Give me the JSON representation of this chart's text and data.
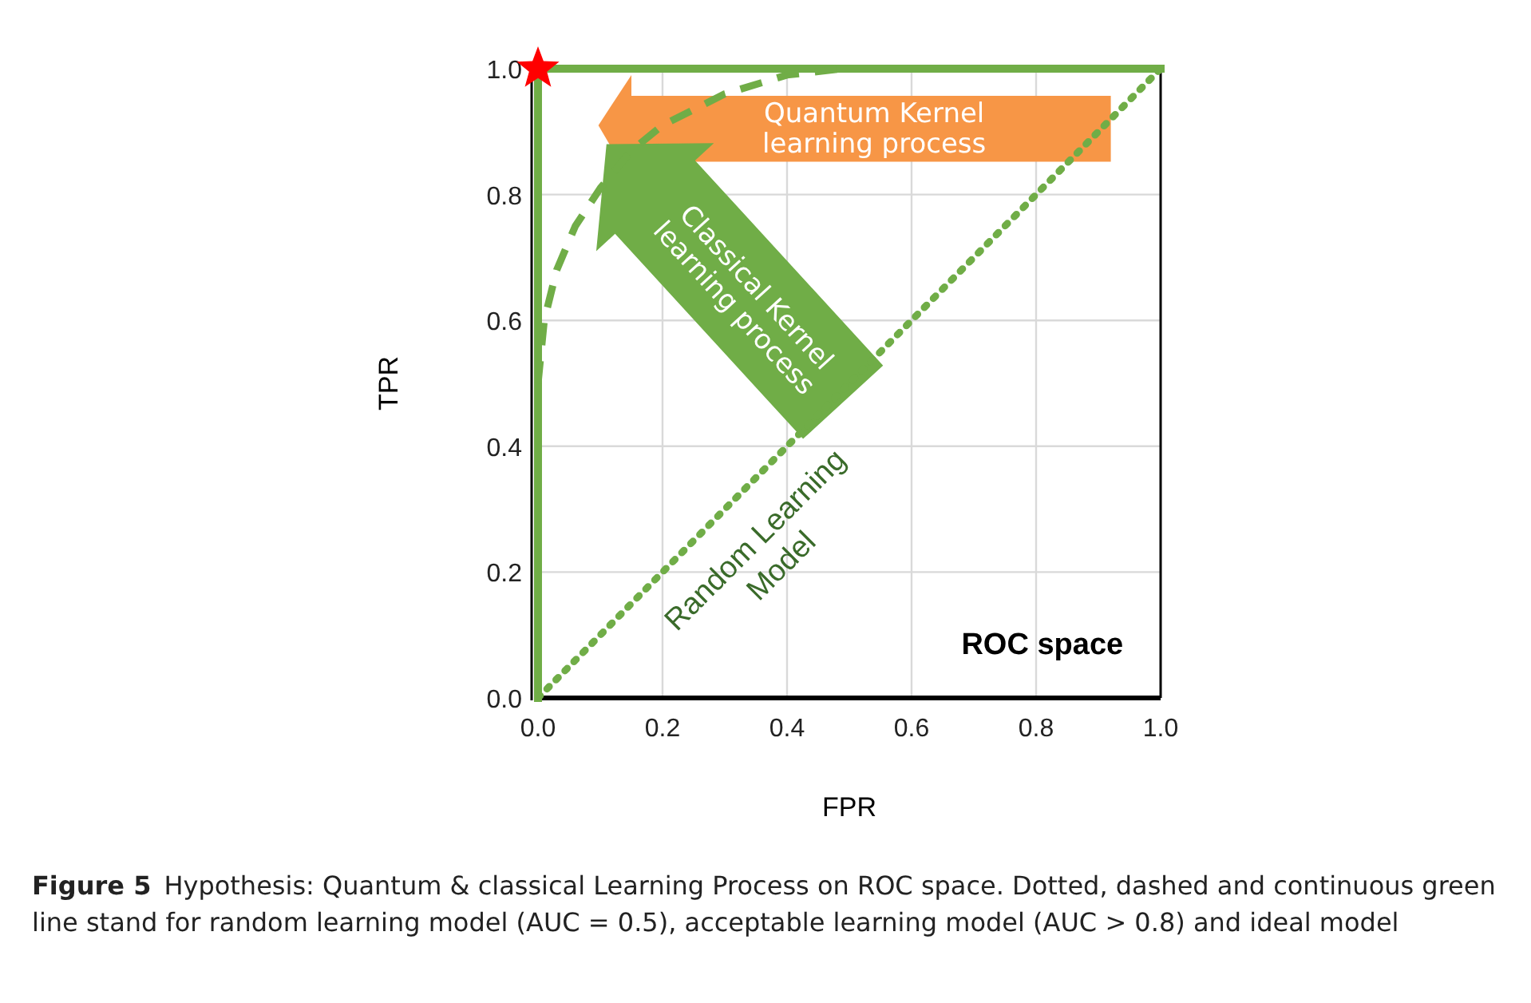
{
  "chart_data": {
    "type": "line",
    "xlabel": "FPR",
    "ylabel": "TPR",
    "xlim": [
      0,
      1
    ],
    "ylim": [
      0,
      1
    ],
    "xticks": [
      {
        "value": 0,
        "label": "0.0"
      },
      0.2,
      0.4,
      0.6,
      0.8,
      {
        "value": 1,
        "label": "1.0"
      }
    ],
    "yticks": [
      {
        "value": 0,
        "label": "0.0"
      },
      0.2,
      0.4,
      0.6,
      0.8,
      {
        "value": 1,
        "label": "1.0"
      }
    ],
    "grid": true,
    "series": [
      {
        "color": "#70ad47",
        "line_style": "dotted",
        "marker": "none",
        "x": [
          0,
          1
        ],
        "values": [
          0,
          1
        ]
      },
      {
        "color": "#70ad47",
        "line_style": "dashed",
        "marker": "none",
        "x": [
          0,
          0.01,
          0.03,
          0.06,
          0.1,
          0.15,
          0.2,
          0.3,
          0.4,
          0.49
        ],
        "values": [
          0.5,
          0.6,
          0.68,
          0.75,
          0.81,
          0.87,
          0.91,
          0.96,
          0.99,
          1.0
        ]
      },
      {
        "type": "scatter",
        "color": "#ff0000",
        "marker": "star",
        "x": [
          0
        ],
        "values": [
          1
        ]
      }
    ],
    "ref_lines": [
      {
        "axis": "x",
        "value": 0,
        "color": "#70ad47",
        "line_style": "solid"
      },
      {
        "axis": "y",
        "value": 1,
        "color": "#70ad47",
        "line_style": "solid"
      }
    ],
    "annotations": [
      "Quantum Kernel learning process",
      "Classical Kernel learning process",
      "Random Learning Model",
      "ROC space",
      "Figure 5",
      "Hypothesis: Quantum & classical Learning Process on ROC space. Dotted, dashed and continuous green line stand for random learning model (AUC = 0.5), acceptable learning model (AUC > 0.8) and ideal model"
    ]
  }
}
